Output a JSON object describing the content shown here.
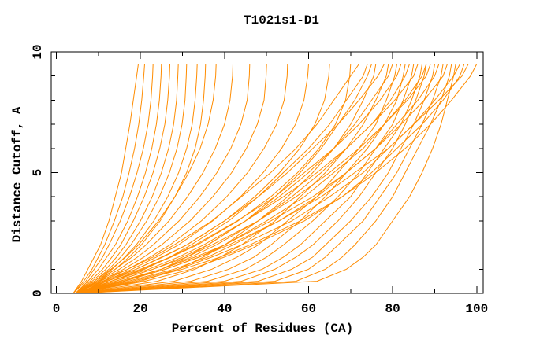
{
  "figure": {
    "background": "#ffffff",
    "axis_color": "#000000"
  },
  "chart_data": {
    "type": "line",
    "title": "T1021s1-D1",
    "xlabel": "Percent of Residues (CA)",
    "ylabel": "Distance Cutoff, A",
    "xlim": [
      0,
      100
    ],
    "ylim": [
      0,
      10
    ],
    "x_major_ticks": [
      0,
      20,
      40,
      60,
      80,
      100
    ],
    "x_minor_ticks": [
      10,
      30,
      50,
      70,
      90
    ],
    "y_major_ticks": [
      0,
      5,
      10
    ],
    "y_minor_ticks": [
      1,
      2,
      3,
      4,
      6,
      7,
      8,
      9
    ],
    "grid": false,
    "legend": "none",
    "line_color": "#ff8c00",
    "cutoffs": [
      0,
      0.5,
      1,
      1.5,
      2,
      3,
      4,
      5,
      6,
      7,
      8,
      9,
      9.5
    ],
    "series_meaning": "each series = one model; values are percent of CA residues fitting under each distance cutoff (A)",
    "series": [
      [
        4,
        6,
        7.5,
        9,
        10.5,
        12.5,
        14,
        15.5,
        16.5,
        17.5,
        18.3,
        19.1,
        19.5
      ],
      [
        4,
        6.5,
        8.5,
        10,
        11.5,
        13.8,
        15.8,
        17.3,
        18.6,
        19.6,
        20.3,
        20.8,
        21
      ],
      [
        4,
        7,
        9,
        11,
        12.5,
        15.2,
        17.4,
        19.2,
        20.7,
        21.8,
        22.5,
        22.9,
        23
      ],
      [
        4.5,
        7.5,
        10,
        12,
        14,
        17,
        19.3,
        21.2,
        22.7,
        23.8,
        24.5,
        24.9,
        25
      ],
      [
        4.5,
        8,
        11,
        13.2,
        15.3,
        18.3,
        20.9,
        23,
        24.6,
        25.8,
        26.5,
        26.9,
        27
      ],
      [
        4.5,
        8.5,
        11.8,
        14.3,
        16.5,
        20,
        22.8,
        25,
        26.7,
        27.9,
        28.6,
        28.9,
        29
      ],
      [
        4.5,
        9,
        12.5,
        15.3,
        17.7,
        21.5,
        24.5,
        26.9,
        28.7,
        29.9,
        30.6,
        30.9,
        31
      ],
      [
        5,
        9.5,
        13.3,
        16.3,
        19,
        23.2,
        26.5,
        29.1,
        31,
        32.3,
        33,
        33.4,
        33.5
      ],
      [
        5,
        10,
        14,
        17.3,
        20.2,
        24.7,
        28.2,
        31,
        33,
        34.3,
        35,
        35.4,
        35.5
      ],
      [
        5,
        9,
        13,
        16.5,
        19.5,
        24.3,
        28.2,
        31.5,
        34.2,
        36.1,
        37.3,
        37.9,
        38
      ],
      [
        5,
        9.5,
        14,
        18,
        21.3,
        26.8,
        31.2,
        34.9,
        37.8,
        40,
        41.3,
        41.9,
        42
      ],
      [
        5,
        10,
        15,
        19.3,
        23,
        29.2,
        34.1,
        38.2,
        41.5,
        43.9,
        45.4,
        45.9,
        46
      ],
      [
        5,
        10.5,
        16,
        20.8,
        25,
        31.8,
        37.2,
        41.7,
        45.2,
        47.8,
        49.4,
        49.9,
        50
      ],
      [
        5.5,
        11,
        17,
        22.3,
        27,
        34.5,
        40.5,
        45.5,
        49.4,
        52.4,
        54.2,
        54.9,
        55
      ],
      [
        5.5,
        11.5,
        18,
        23.8,
        29,
        37.2,
        43.8,
        49.2,
        53.6,
        56.9,
        58.9,
        59.8,
        60
      ],
      [
        5.5,
        12,
        19,
        25.3,
        31,
        40,
        47.2,
        53.1,
        57.9,
        61.5,
        63.8,
        64.8,
        65
      ],
      [
        6,
        13,
        20.5,
        27.3,
        33.5,
        43.2,
        51,
        57.4,
        62.5,
        66.4,
        68.8,
        69.8,
        70
      ],
      [
        4.5,
        10,
        17,
        23,
        28,
        37,
        44,
        51,
        57,
        62,
        66,
        70,
        72
      ],
      [
        4.5,
        13,
        21,
        27,
        32,
        41,
        48,
        54,
        60,
        65,
        69,
        73,
        74
      ],
      [
        4.5,
        16,
        25,
        31,
        36,
        45,
        52,
        58,
        63,
        67,
        71,
        74,
        75
      ],
      [
        4.5,
        20,
        29,
        35,
        40,
        48,
        55,
        61,
        66,
        70,
        73,
        75.5,
        76
      ],
      [
        4.5,
        11,
        19,
        25,
        31,
        40,
        48,
        55,
        61,
        67,
        72,
        76.5,
        78
      ],
      [
        5,
        24,
        33,
        39,
        44,
        52,
        58,
        64,
        69,
        73,
        76,
        78.5,
        79
      ],
      [
        5,
        14,
        23,
        30,
        36,
        45,
        53,
        60,
        66,
        71,
        75,
        79,
        80
      ],
      [
        5,
        28,
        37,
        43,
        48,
        55,
        62,
        67,
        72,
        76,
        78.5,
        80.5,
        81
      ],
      [
        5,
        12,
        20,
        27,
        33,
        43,
        52,
        59,
        66,
        72,
        77,
        81,
        82
      ],
      [
        5,
        32,
        41,
        47,
        51,
        58,
        64,
        69,
        74,
        78,
        81,
        82.5,
        83
      ],
      [
        5,
        15,
        25,
        32,
        38,
        48,
        56,
        63,
        69,
        75,
        79.5,
        83,
        84
      ],
      [
        5,
        36,
        45,
        50,
        54,
        61,
        67,
        72,
        76,
        80,
        82.5,
        84.5,
        85
      ],
      [
        5,
        13,
        22,
        29,
        35,
        45,
        54,
        62,
        69,
        75,
        80.5,
        85,
        86
      ],
      [
        5,
        40,
        49,
        54,
        58,
        64,
        70,
        74,
        78,
        82,
        84.5,
        86.5,
        87
      ],
      [
        5,
        16,
        26,
        34,
        40,
        50,
        59,
        66,
        73,
        78,
        83,
        87,
        88
      ],
      [
        5,
        44,
        52,
        57,
        61,
        67,
        72,
        76,
        80,
        83,
        85.5,
        87.5,
        88
      ],
      [
        5,
        14,
        23,
        31,
        37,
        48,
        57,
        65,
        72,
        78,
        83.5,
        88,
        89
      ],
      [
        5,
        48,
        56,
        61,
        64,
        70,
        75,
        79,
        82,
        85,
        87.5,
        89.5,
        90
      ],
      [
        5,
        17,
        28,
        36,
        42,
        53,
        62,
        69,
        76,
        81,
        86,
        90,
        91
      ],
      [
        5,
        52,
        60,
        64,
        67,
        73,
        77,
        81,
        84,
        87,
        89.5,
        91.5,
        92
      ],
      [
        5,
        15,
        25,
        33,
        40,
        51,
        61,
        69,
        76,
        82,
        87.5,
        92,
        93
      ],
      [
        5,
        57,
        64,
        68,
        71,
        76,
        80,
        83,
        86,
        89,
        91.5,
        93.5,
        94
      ],
      [
        5,
        62,
        69,
        73,
        76,
        80,
        84,
        87,
        89.5,
        91.5,
        93,
        94.5,
        95
      ],
      [
        5,
        18,
        29,
        37,
        44,
        56,
        65,
        73,
        79,
        85,
        90,
        94.5,
        96
      ],
      [
        5,
        21,
        32,
        40,
        47,
        59,
        68,
        75,
        81,
        87,
        92,
        96,
        97
      ],
      [
        5,
        16,
        26,
        34,
        41,
        53,
        63,
        71,
        79,
        85,
        91,
        96.5,
        98
      ],
      [
        5,
        19,
        30,
        39,
        46,
        58,
        68,
        76,
        83,
        89,
        94,
        98.5,
        100
      ]
    ]
  }
}
